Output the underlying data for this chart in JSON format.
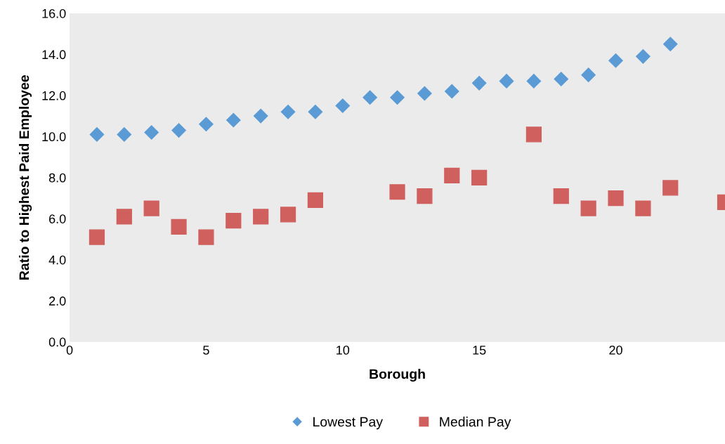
{
  "chart_data": {
    "type": "scatter",
    "xlabel": "Borough",
    "ylabel": "Ratio to Highest Paid Employee",
    "xlim": [
      0,
      24
    ],
    "xticks": [
      0,
      5,
      10,
      15,
      20
    ],
    "ylim": [
      0,
      16
    ],
    "yticks": [
      {
        "value": 0,
        "label": "0.0"
      },
      {
        "value": 2,
        "label": "2.0"
      },
      {
        "value": 4,
        "label": "4.0"
      },
      {
        "value": 6,
        "label": "6.0"
      },
      {
        "value": 8,
        "label": "8.0"
      },
      {
        "value": 10,
        "label": "10.0"
      },
      {
        "value": 12,
        "label": "12.0"
      },
      {
        "value": 14,
        "label": "14.0"
      },
      {
        "value": 16,
        "label": "16.0"
      }
    ],
    "grid": false,
    "legend": "bottom",
    "series": [
      {
        "name": "Lowest Pay",
        "color": "#5b9bd5",
        "marker": "diamond",
        "x": [
          1,
          2,
          3,
          4,
          5,
          6,
          7,
          8,
          9,
          10,
          11,
          12,
          13,
          14,
          15,
          16,
          17,
          18,
          19,
          20,
          21,
          22
        ],
        "values": [
          10.1,
          10.1,
          10.2,
          10.3,
          10.6,
          10.8,
          11.0,
          11.2,
          11.2,
          11.5,
          11.9,
          11.9,
          12.1,
          12.2,
          12.6,
          12.7,
          12.7,
          12.8,
          13.0,
          13.7,
          13.9,
          14.5
        ]
      },
      {
        "name": "Median Pay",
        "color": "#d0605e",
        "marker": "square",
        "x": [
          1,
          2,
          3,
          4,
          5,
          6,
          7,
          8,
          9,
          12,
          13,
          14,
          15,
          17,
          18,
          19,
          20,
          21,
          22,
          24
        ],
        "values": [
          5.1,
          6.1,
          6.5,
          5.6,
          5.1,
          5.9,
          6.1,
          6.2,
          6.9,
          7.3,
          7.1,
          8.1,
          8.0,
          10.1,
          7.1,
          6.5,
          7.0,
          6.5,
          7.5,
          6.8
        ]
      }
    ]
  }
}
